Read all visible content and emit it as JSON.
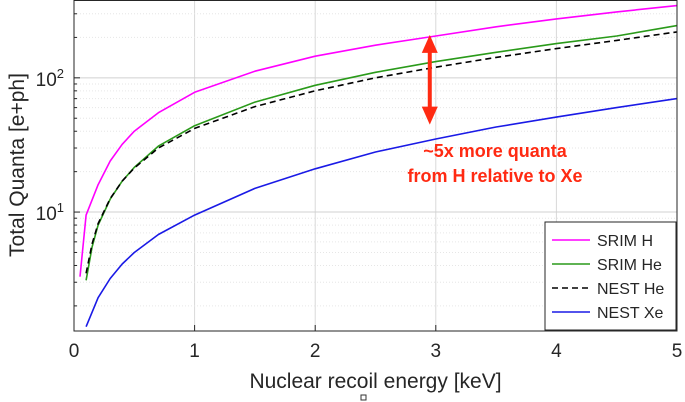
{
  "chart_data": {
    "type": "line",
    "title": "",
    "xlabel": "Nuclear recoil energy [keV]",
    "ylabel": "Total Quanta [e+ph]",
    "xlim": [
      0,
      5
    ],
    "ylim": [
      1.3,
      380
    ],
    "yscale": "log",
    "grid": true,
    "legend_position": "bottom-right",
    "x_ticks": [
      {
        "value": 0,
        "label": "0"
      },
      {
        "value": 1,
        "label": "1"
      },
      {
        "value": 2,
        "label": "2"
      },
      {
        "value": 3,
        "label": "3"
      },
      {
        "value": 4,
        "label": "4"
      },
      {
        "value": 5,
        "label": "5"
      }
    ],
    "y_ticks": [
      {
        "value": 10,
        "base": "10",
        "exp": "1"
      },
      {
        "value": 100,
        "base": "10",
        "exp": "2"
      }
    ],
    "series": [
      {
        "name": "SRIM H",
        "color": "#ff00ff",
        "dash": "solid",
        "x": [
          0.05,
          0.1,
          0.2,
          0.3,
          0.4,
          0.5,
          0.7,
          1.0,
          1.5,
          2.0,
          2.5,
          3.0,
          3.5,
          4.0,
          4.5,
          5.0
        ],
        "y": [
          3.3,
          9.5,
          16,
          24,
          32,
          40,
          55,
          78,
          112,
          145,
          175,
          205,
          240,
          275,
          310,
          345
        ]
      },
      {
        "name": "SRIM He",
        "color": "#2a9a1a",
        "dash": "solid",
        "x": [
          0.1,
          0.15,
          0.2,
          0.3,
          0.4,
          0.5,
          0.7,
          1.0,
          1.5,
          2.0,
          2.5,
          3.0,
          3.5,
          4.0,
          4.5,
          5.0
        ],
        "y": [
          3.1,
          5.5,
          8,
          12.5,
          17,
          21.5,
          31,
          44,
          66,
          88,
          110,
          132,
          155,
          180,
          205,
          245
        ]
      },
      {
        "name": "NEST He",
        "color": "#000000",
        "dash": "dashed",
        "x": [
          0.1,
          0.15,
          0.2,
          0.3,
          0.4,
          0.5,
          0.7,
          1.0,
          1.5,
          2.0,
          2.5,
          3.0,
          3.5,
          4.0,
          4.5,
          5.0
        ],
        "y": [
          3.5,
          5.8,
          8.2,
          12.6,
          17,
          21.3,
          30,
          42,
          61,
          80,
          100,
          120,
          142,
          165,
          190,
          220
        ]
      },
      {
        "name": "NEST Xe",
        "color": "#1a1ae6",
        "dash": "solid",
        "x": [
          0.1,
          0.2,
          0.3,
          0.4,
          0.5,
          0.7,
          1.0,
          1.5,
          2.0,
          2.5,
          3.0,
          3.5,
          4.0,
          4.5,
          5.0
        ],
        "y": [
          1.4,
          2.3,
          3.2,
          4.1,
          5.0,
          6.8,
          9.5,
          15,
          21,
          28,
          35,
          43,
          51,
          60,
          70
        ]
      }
    ],
    "annotations": [
      {
        "line1": "~5x more quanta",
        "line2": "from H relative to Xe",
        "color": "#ff2a12"
      },
      {
        "type": "double-arrow",
        "x": 2.95,
        "y_from": 48,
        "y_to": 195,
        "color": "#ff2a12"
      }
    ]
  }
}
